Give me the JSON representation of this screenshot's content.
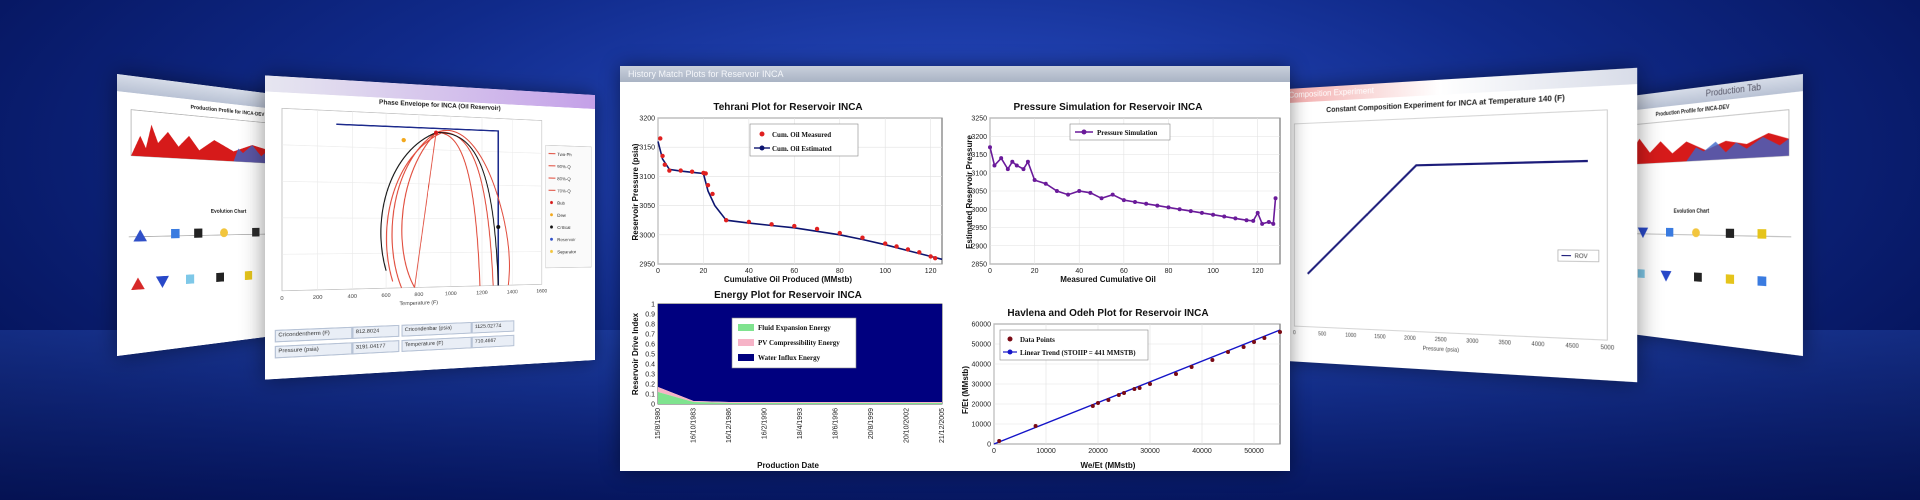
{
  "main_window": {
    "title": "History Match Plots for Reservoir INCA",
    "tehrani": {
      "title": "Tehrani Plot for Reservoir INCA",
      "xlabel": "Cumulative Oil Produced (MMstb)",
      "ylabel": "Reservoir Pressure (psia)",
      "legend": [
        "Cum. Oil Measured",
        "Cum. Oil Estimated"
      ],
      "xticks": [
        "0",
        "20",
        "40",
        "60",
        "80",
        "100",
        "120"
      ],
      "yticks": [
        "2950",
        "3000",
        "3050",
        "3100",
        "3150",
        "3200"
      ]
    },
    "pressure": {
      "title": "Pressure Simulation for Reservoir INCA",
      "xlabel": "Measured Cumulative Oil",
      "ylabel": "Estimated Reservoir Pressure",
      "legend": [
        "Pressure Simulation"
      ],
      "xticks": [
        "0",
        "20",
        "40",
        "60",
        "80",
        "100",
        "120"
      ],
      "yticks": [
        "2850",
        "2900",
        "2950",
        "3000",
        "3050",
        "3100",
        "3150",
        "3200",
        "3250"
      ]
    },
    "energy": {
      "title": "Energy Plot for Reservoir INCA",
      "xlabel": "Production Date",
      "ylabel": "Reservoir Drive Index",
      "legend": [
        "Fluid Expansion Energy",
        "PV Compressibility Energy",
        "Water Influx Energy"
      ],
      "xticks": [
        "15/8/1980",
        "16/10/1983",
        "16/12/1986",
        "16/2/1990",
        "18/4/1993",
        "18/6/1996",
        "20/8/1999",
        "20/10/2002",
        "21/12/2005"
      ],
      "yticks": [
        "0",
        "0.1",
        "0.2",
        "0.3",
        "0.4",
        "0.5",
        "0.6",
        "0.7",
        "0.8",
        "0.9",
        "1"
      ]
    },
    "havlena": {
      "title": "Havlena and Odeh Plot for Reservoir INCA",
      "xlabel": "We/Et (MMstb)",
      "ylabel": "F/Et (MMstb)",
      "legend": [
        "Data Points",
        "Linear Trend (STOIIP = 441 MMSTB)"
      ],
      "xticks": [
        "0",
        "10000",
        "20000",
        "30000",
        "40000",
        "50000"
      ],
      "yticks": [
        "0",
        "10000",
        "20000",
        "30000",
        "40000",
        "50000",
        "60000"
      ]
    }
  },
  "left_window": {
    "title": "Phase Envelope for INCA (Oil Reservoir)",
    "xlabel": "Temperature (F)",
    "legend": [
      "Two-Ph",
      "90%-Q",
      "80%-Q",
      "70%-Q",
      "Bub",
      "Dew",
      "Critical",
      "Reservoir",
      "Separator"
    ],
    "xticks": [
      "0",
      "200",
      "400",
      "600",
      "800",
      "1000",
      "1200",
      "1400",
      "1600"
    ],
    "table": [
      [
        "Cricondentherm (F)",
        "812.8024",
        "Cricondenbar (psia)",
        "1125.02774"
      ],
      [
        "Pressure (psia)",
        "3191.04177",
        "Temperature (F)",
        "710.4667"
      ]
    ]
  },
  "far_left_window": {
    "production_title": "Production Profile for INCA-DEV",
    "evolution_title": "Evolution Chart"
  },
  "right_window": {
    "title": "Constant Composition Experiment for INCA at Temperature 140 (F)",
    "window_title": "Composition Experiment",
    "xlabel": "Pressure (psia)",
    "legend": [
      "ROV"
    ],
    "xticks": [
      "0",
      "500",
      "1000",
      "1500",
      "2000",
      "2500",
      "3000",
      "3500",
      "4000",
      "4500",
      "5000"
    ]
  },
  "far_right_window": {
    "production_title": "Production Profile for INCA-DEV",
    "evolution_title": "Evolution Chart",
    "window_title": "Production Tab"
  },
  "colors": {
    "accent_red": "#e02020",
    "navy_line": "#0d1570",
    "purple_line": "#6a1a9a",
    "water_fill": "#00007f",
    "fluid_fill": "#7fe38f",
    "pv_fill": "#f6b3c7"
  },
  "chart_data": [
    {
      "type": "line",
      "title": "Tehrani Plot for Reservoir INCA",
      "xlabel": "Cumulative Oil Produced (MMstb)",
      "ylabel": "Reservoir Pressure (psia)",
      "xlim": [
        0,
        125
      ],
      "ylim": [
        2950,
        3200
      ],
      "series": [
        {
          "name": "Cum. Oil Measured",
          "x": [
            1,
            2,
            3,
            5,
            10,
            15,
            20,
            21,
            22,
            24,
            30,
            40,
            50,
            60,
            70,
            80,
            90,
            100,
            105,
            110,
            115,
            120,
            122
          ],
          "y": [
            3165,
            3135,
            3120,
            3110,
            3110,
            3108,
            3106,
            3105,
            3085,
            3070,
            3025,
            3022,
            3018,
            3015,
            3010,
            3003,
            2995,
            2985,
            2980,
            2975,
            2970,
            2963,
            2960
          ]
        },
        {
          "name": "Cum. Oil Estimated",
          "x": [
            0,
            2,
            5,
            10,
            15,
            20,
            22,
            25,
            30,
            40,
            50,
            60,
            70,
            80,
            90,
            100,
            110,
            120,
            125
          ],
          "y": [
            3160,
            3130,
            3112,
            3109,
            3107,
            3105,
            3075,
            3050,
            3025,
            3020,
            3016,
            3012,
            3006,
            3000,
            2992,
            2983,
            2973,
            2963,
            2958
          ]
        }
      ],
      "grid": true,
      "legend": "top-center"
    },
    {
      "type": "line",
      "title": "Pressure Simulation for Reservoir INCA",
      "xlabel": "Measured Cumulative Oil",
      "ylabel": "Estimated Reservoir Pressure",
      "xlim": [
        0,
        130
      ],
      "ylim": [
        2850,
        3250
      ],
      "series": [
        {
          "name": "Pressure Simulation",
          "x": [
            0,
            2,
            5,
            8,
            10,
            12,
            15,
            17,
            20,
            25,
            30,
            35,
            40,
            45,
            50,
            55,
            60,
            65,
            70,
            75,
            80,
            85,
            90,
            95,
            100,
            105,
            110,
            115,
            118,
            120,
            122,
            125,
            127,
            128
          ],
          "y": [
            3170,
            3120,
            3140,
            3110,
            3130,
            3120,
            3110,
            3130,
            3080,
            3070,
            3050,
            3040,
            3050,
            3045,
            3030,
            3040,
            3025,
            3020,
            3015,
            3010,
            3005,
            3000,
            2995,
            2990,
            2985,
            2980,
            2975,
            2970,
            2968,
            2990,
            2960,
            2965,
            2960,
            3030
          ]
        }
      ],
      "grid": true,
      "legend": "top-center"
    },
    {
      "type": "area",
      "title": "Energy Plot for Reservoir INCA",
      "xlabel": "Production Date",
      "ylabel": "Reservoir Drive Index",
      "x": [
        "15/8/1980",
        "16/10/1983",
        "16/12/1986",
        "16/2/1990",
        "18/4/1993",
        "18/6/1996",
        "20/8/1999",
        "20/10/2002",
        "21/12/2005"
      ],
      "ylim": [
        0,
        1
      ],
      "series": [
        {
          "name": "Fluid Expansion Energy",
          "values": [
            0.12,
            0.02,
            0.01,
            0.01,
            0.01,
            0.01,
            0.01,
            0.01,
            0.01
          ]
        },
        {
          "name": "PV Compressibility Energy",
          "values": [
            0.05,
            0.01,
            0.01,
            0.01,
            0.01,
            0.01,
            0.01,
            0.01,
            0.01
          ]
        },
        {
          "name": "Water Influx Energy",
          "values": [
            0.83,
            0.97,
            0.98,
            0.98,
            0.98,
            0.98,
            0.98,
            0.98,
            0.98
          ]
        }
      ],
      "legend": "top-center"
    },
    {
      "type": "scatter",
      "title": "Havlena and Odeh Plot for Reservoir INCA",
      "xlabel": "We/Et (MMstb)",
      "ylabel": "F/Et (MMstb)",
      "xlim": [
        0,
        55000
      ],
      "ylim": [
        0,
        60000
      ],
      "series": [
        {
          "name": "Data Points",
          "x": [
            1000,
            8000,
            19000,
            20000,
            22000,
            24000,
            25000,
            27000,
            28000,
            30000,
            35000,
            38000,
            42000,
            45000,
            48000,
            50000,
            52000,
            55000
          ],
          "y": [
            1500,
            9000,
            19000,
            20500,
            22000,
            24500,
            25500,
            27500,
            28000,
            30000,
            35000,
            38500,
            42000,
            46000,
            48500,
            51000,
            53000,
            56000
          ]
        },
        {
          "name": "Linear Trend (STOIIP = 441 MMSTB)",
          "x": [
            0,
            55000
          ],
          "y": [
            0,
            57000
          ]
        }
      ],
      "grid": true,
      "legend": "top-left"
    }
  ]
}
